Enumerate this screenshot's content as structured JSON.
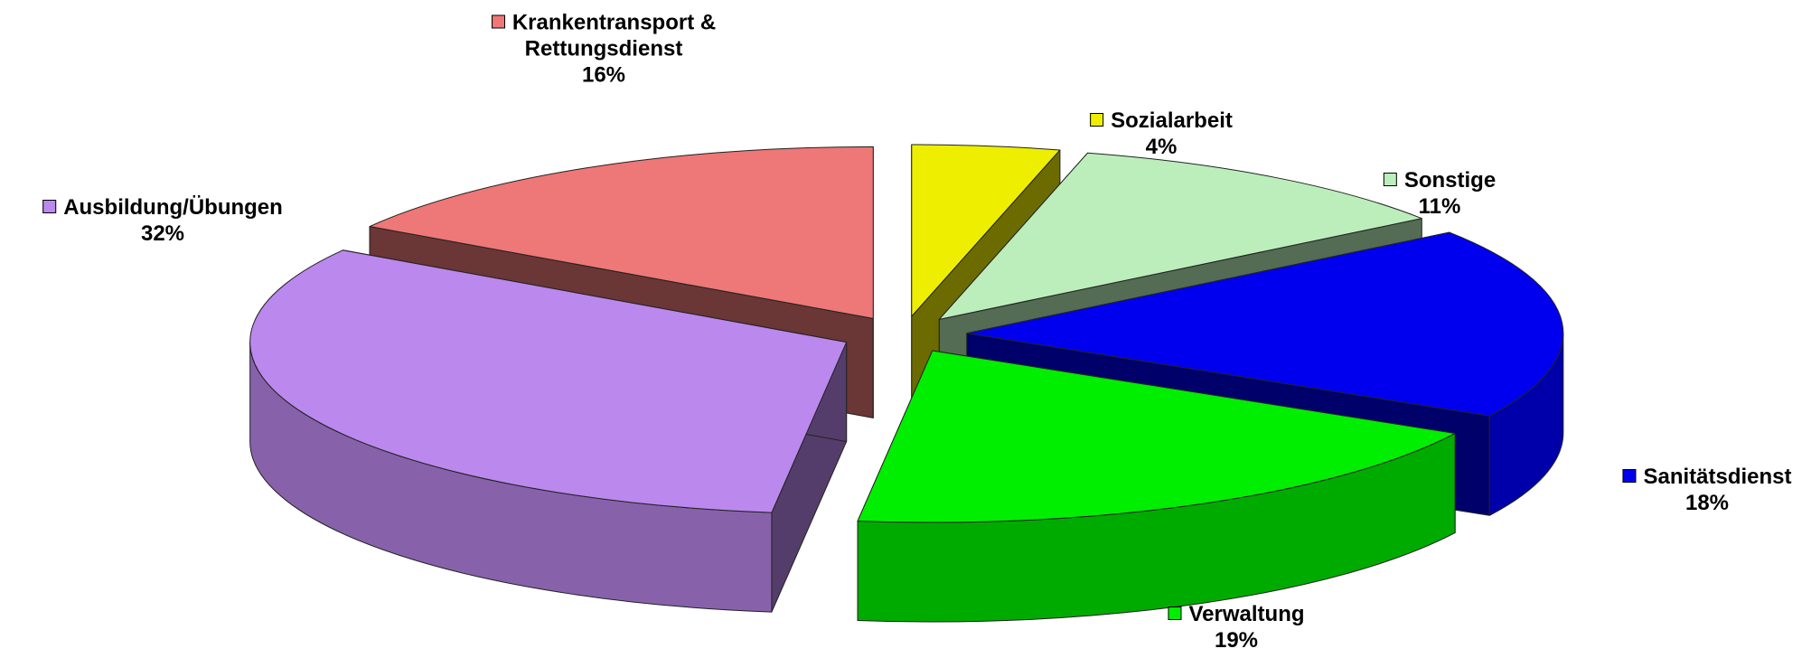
{
  "chart_data": {
    "type": "pie",
    "categories": [
      "Sozialarbeit",
      "Sonstige",
      "Sanitätsdienst",
      "Verwaltung",
      "Ausbildung/Übungen",
      "Krankentransport & Rettungsdienst"
    ],
    "values": [
      4,
      11,
      18,
      19,
      32,
      16
    ],
    "value_labels": [
      "4%",
      "11%",
      "18%",
      "19%",
      "32%",
      "16%"
    ],
    "colors": [
      "#eeee00",
      "#bbeebb",
      "#0000ee",
      "#00ee00",
      "#bb88ee",
      "#ee7777"
    ]
  }
}
